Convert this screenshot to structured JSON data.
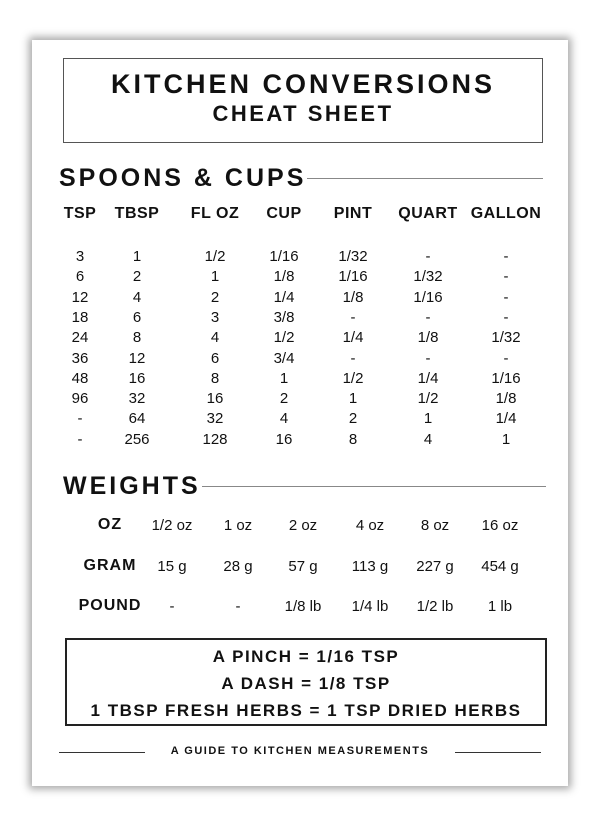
{
  "title": "KITCHEN CONVERSIONS",
  "subtitle": "CHEAT SHEET",
  "spoons": {
    "heading": "SPOONS & CUPS",
    "headers": [
      "TSP",
      "TBSP",
      "FL OZ",
      "CUP",
      "PINT",
      "QUART",
      "GALLON"
    ],
    "rows": [
      [
        "3",
        "1",
        "1/2",
        "1/16",
        "1/32",
        "-",
        "-"
      ],
      [
        "6",
        "2",
        "1",
        "1/8",
        "1/16",
        "1/32",
        "-"
      ],
      [
        "12",
        "4",
        "2",
        "1/4",
        "1/8",
        "1/16",
        "-"
      ],
      [
        "18",
        "6",
        "3",
        "3/8",
        "-",
        "-",
        "-"
      ],
      [
        "24",
        "8",
        "4",
        "1/2",
        "1/4",
        "1/8",
        "1/32"
      ],
      [
        "36",
        "12",
        "6",
        "3/4",
        "-",
        "-",
        "-"
      ],
      [
        "48",
        "16",
        "8",
        "1",
        "1/2",
        "1/4",
        "1/16"
      ],
      [
        "96",
        "32",
        "16",
        "2",
        "1",
        "1/2",
        "1/8"
      ],
      [
        "-",
        "64",
        "32",
        "4",
        "2",
        "1",
        "1/4"
      ],
      [
        "-",
        "256",
        "128",
        "16",
        "8",
        "4",
        "1"
      ]
    ]
  },
  "weights": {
    "heading": "WEIGHTS",
    "rows": [
      {
        "label": "OZ",
        "values": [
          "1/2 oz",
          "1 oz",
          "2 oz",
          "4 oz",
          "8 oz",
          "16 oz"
        ]
      },
      {
        "label": "GRAM",
        "values": [
          "15 g",
          "28 g",
          "57 g",
          "113 g",
          "227 g",
          "454 g"
        ]
      },
      {
        "label": "POUND",
        "values": [
          "-",
          "-",
          "1/8 lb",
          "1/4 lb",
          "1/2 lb",
          "1 lb"
        ]
      }
    ]
  },
  "notes": [
    "A PINCH = 1/16 TSP",
    "A DASH = 1/8 TSP",
    "1 TBSP FRESH HERBS = 1 TSP DRIED HERBS"
  ],
  "footer": "A GUIDE TO KITCHEN MEASUREMENTS"
}
